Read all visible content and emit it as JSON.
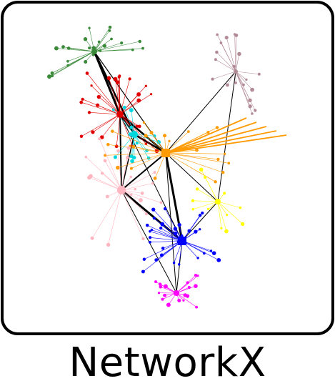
{
  "logo": {
    "wordmark": "NetworkX"
  },
  "colors": {
    "frame": "#000000",
    "background": "#ffffff",
    "cluster_green": "#3a8a3a",
    "cluster_red": "#e00000",
    "cluster_cyan": "#00d8e0",
    "cluster_orange": "#ff9a00",
    "cluster_pink": "#ffb6c1",
    "cluster_yellow": "#ffff00",
    "cluster_blue": "#0000ff",
    "cluster_magenta": "#ff00ff",
    "cluster_mauve": "#b28a96"
  }
}
